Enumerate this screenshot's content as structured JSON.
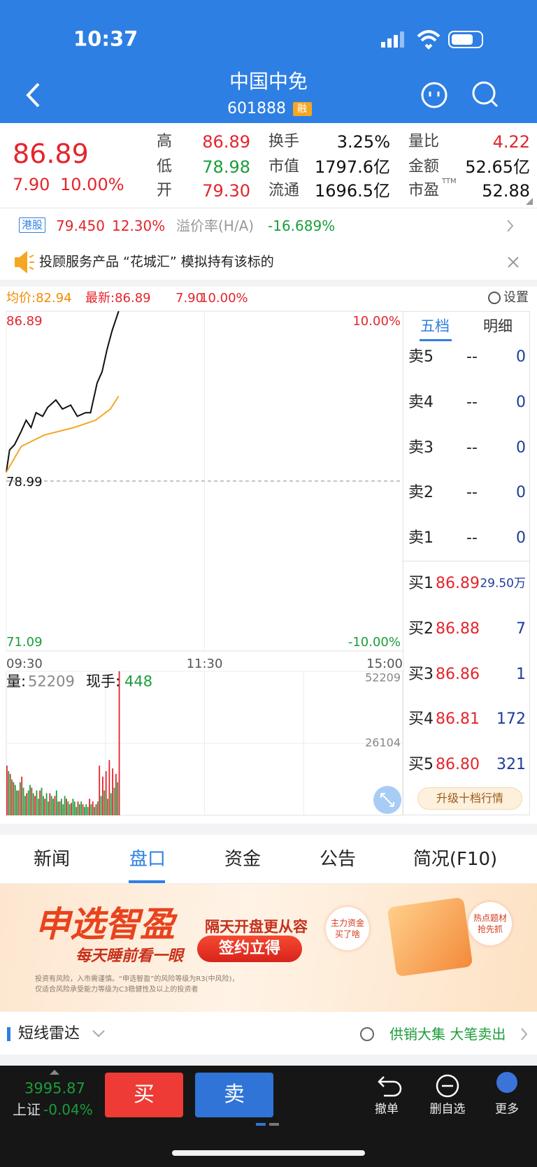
{
  "status": {
    "time": "10:37"
  },
  "header": {
    "title": "中国中免",
    "code": "601888",
    "badge": "融"
  },
  "quote": {
    "price": "86.89",
    "change": "7.90",
    "change_pct": "10.00%",
    "stats": [
      [
        "高",
        "86.89"
      ],
      [
        "低",
        "78.98"
      ],
      [
        "开",
        "79.30"
      ],
      [
        "换手",
        "3.25%"
      ],
      [
        "市值",
        "1797.6亿"
      ],
      [
        "流通",
        "1696.5亿"
      ],
      [
        "量比",
        "4.22"
      ],
      [
        "金额",
        "52.65亿"
      ],
      [
        "市盈",
        "52.88"
      ]
    ],
    "ttm": "TTM"
  },
  "hk": {
    "tag": "港股",
    "price": "79.450",
    "pct": "12.30%",
    "premium_label": "溢价率(H/A)",
    "premium": "-16.689%"
  },
  "notice": {
    "text": "投顾服务产品 “花城汇” 模拟持有该标的"
  },
  "chart_header": {
    "avg": "均价:82.94",
    "latest": "最新:86.89",
    "change": "7.90",
    "pct": "10.00%",
    "settings": "设置"
  },
  "volume_header": {
    "vol_label": "量:",
    "vol": "52209",
    "hand_label": "现手:",
    "hand": "448"
  },
  "order_book": {
    "tabs": [
      "五档",
      "明细"
    ],
    "asks": [
      [
        "卖5",
        "--",
        "0"
      ],
      [
        "卖4",
        "--",
        "0"
      ],
      [
        "卖3",
        "--",
        "0"
      ],
      [
        "卖2",
        "--",
        "0"
      ],
      [
        "卖1",
        "--",
        "0"
      ]
    ],
    "bids": [
      [
        "买1",
        "86.89",
        "29.50万"
      ],
      [
        "买2",
        "86.88",
        "7"
      ],
      [
        "买3",
        "86.86",
        "1"
      ],
      [
        "买4",
        "86.81",
        "172"
      ],
      [
        "买5",
        "86.80",
        "321"
      ]
    ],
    "upgrade": "升级十档行情"
  },
  "tabs": [
    "新闻",
    "盘口",
    "资金",
    "公告",
    "简况(F10)"
  ],
  "banner": {
    "brand": "申选智盈",
    "slogan": "每天睡前看一眼",
    "headline": "隔天开盘更从容",
    "button": "签约立得",
    "bubble1": [
      "主力资金",
      "买了啥"
    ],
    "bubble2": [
      "热点题材",
      "抢先抓"
    ],
    "disclaimer": [
      "投资有风险，入市需谨慎。“申选智盈”的风险等级为R3(中风险)，",
      "仅适合风险承受能力等级为C3稳健性及以上的投资者"
    ]
  },
  "radar": {
    "title": "短线雷达",
    "signal": "供销大集 大笔卖出"
  },
  "bottom": {
    "index": "3995.87",
    "index_name": "上证",
    "index_pct": "-0.04%",
    "buy": "买",
    "sell": "卖",
    "actions": [
      "撤单",
      "删自选",
      "更多"
    ]
  },
  "chart_data": [
    {
      "type": "line",
      "xlim": [
        0,
        240
      ],
      "xticks": [
        {
          "value": 0,
          "label": "09:30"
        },
        {
          "value": 120,
          "label": "11:30"
        },
        {
          "value": 240,
          "label": "15:00"
        }
      ],
      "ylim": [
        71.09,
        86.89
      ],
      "yticks": [
        71.09,
        78.99,
        86.89
      ],
      "y2lim": [
        -10,
        10
      ],
      "y2ticks": [
        {
          "value": -10,
          "label": "-10.00%"
        },
        {
          "value": 10,
          "label": "10.00%"
        }
      ],
      "series": [
        {
          "color": "#111111",
          "x": [
            0,
            2,
            5,
            9,
            12,
            15,
            18,
            22,
            25,
            30,
            34,
            39,
            43,
            48,
            51,
            55,
            58,
            61,
            64,
            68
          ],
          "values": [
            79.4,
            80.44,
            80.68,
            81.3,
            81.82,
            81.48,
            82.17,
            82.0,
            82.41,
            82.76,
            82.34,
            82.52,
            82.0,
            82.17,
            82.17,
            83.55,
            84.07,
            85.11,
            85.97,
            86.89
          ]
        },
        {
          "color": "#f5a623",
          "x": [
            0,
            9,
            23,
            41,
            54,
            63,
            68
          ],
          "values": [
            79.4,
            80.6,
            81.13,
            81.48,
            81.82,
            82.34,
            82.94
          ]
        }
      ]
    },
    {
      "type": "bar",
      "xlim": [
        0,
        240
      ],
      "ylim": [
        0,
        52209
      ],
      "yticks": [
        26104,
        52209
      ],
      "series": [
        {
          "color": "#e4252c",
          "x": [
            0,
            2,
            4,
            7,
            9,
            12,
            15,
            17,
            20,
            23,
            26,
            29,
            32,
            36,
            39,
            43,
            46,
            50,
            52,
            54,
            56,
            58,
            60,
            62,
            64,
            66,
            68
          ],
          "values": [
            18000,
            15000,
            12000,
            9000,
            14000,
            8000,
            10000,
            7000,
            9000,
            6000,
            8000,
            7000,
            5000,
            6000,
            4500,
            5000,
            4000,
            6000,
            5000,
            4000,
            18000,
            14000,
            16000,
            20000,
            17000,
            15000,
            52209
          ]
        },
        {
          "color": "#1b9d3a",
          "x": [
            1,
            3,
            5,
            6,
            8,
            10,
            11,
            13,
            14,
            16,
            18,
            19,
            21,
            22,
            24,
            25,
            27,
            28,
            30,
            31,
            33,
            34,
            35,
            37,
            38,
            40,
            41,
            42,
            44,
            45,
            47,
            48,
            49,
            51,
            53,
            55,
            57,
            59,
            61,
            63,
            65,
            67
          ],
          "values": [
            16000,
            13000,
            11000,
            9000,
            12000,
            10000,
            7000,
            9000,
            11000,
            8000,
            9000,
            6000,
            10000,
            7000,
            8000,
            5000,
            7000,
            6000,
            9000,
            5000,
            6000,
            4000,
            7000,
            5000,
            4000,
            6000,
            5000,
            3000,
            4000,
            5000,
            3000,
            4000,
            3000,
            4000,
            3000,
            5000,
            7000,
            9000,
            6000,
            8000,
            10000,
            12000
          ]
        }
      ]
    }
  ]
}
